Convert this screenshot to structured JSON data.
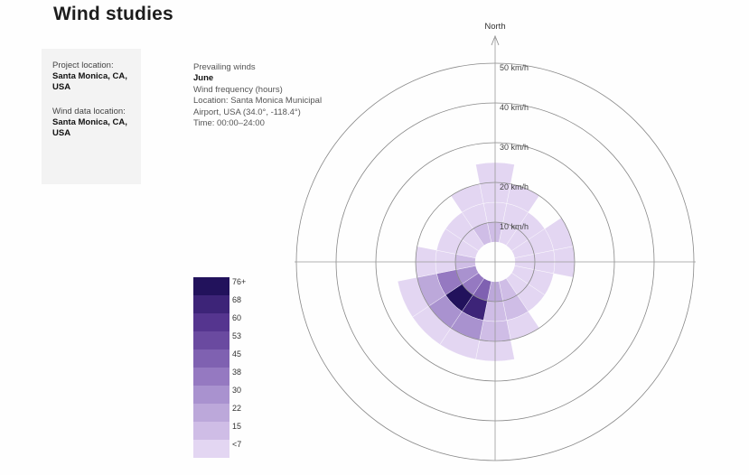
{
  "page": {
    "title": "Wind studies",
    "project_location_label": "Project location:",
    "project_location_value": "Santa Monica, CA, USA",
    "wind_data_location_label": "Wind data location:",
    "wind_data_location_value": "Santa Monica, CA, USA"
  },
  "info": {
    "line1": "Prevailing winds",
    "line2": "June",
    "line3": "Wind frequency (hours)",
    "line4": "Location: Santa Monica Municipal",
    "line5": "Airport, USA (34.0°, -118.4°)",
    "line6": "Time: 00:00–24:00"
  },
  "chart_data": {
    "type": "wind_rose",
    "direction_label": "North",
    "rings_kmh": [
      10,
      20,
      30,
      40,
      50
    ],
    "ring_labels": [
      "10 km/h",
      "20 km/h",
      "30 km/h",
      "40 km/h",
      "50 km/h"
    ],
    "speed_bins_kmh": [
      [
        5,
        10
      ],
      [
        10,
        15
      ],
      [
        15,
        20
      ],
      [
        20,
        25
      ]
    ],
    "sectors_deg": [
      0,
      22.5,
      45,
      67.5,
      90,
      112.5,
      135,
      157.5,
      180,
      202.5,
      225,
      247.5,
      270,
      292.5,
      315,
      337.5
    ],
    "frequency_hours": [
      [
        15,
        12,
        8,
        4
      ],
      [
        12,
        10,
        6,
        0
      ],
      [
        8,
        6,
        0,
        0
      ],
      [
        10,
        8,
        4,
        0
      ],
      [
        8,
        8,
        8,
        0
      ],
      [
        6,
        4,
        0,
        0
      ],
      [
        12,
        8,
        0,
        0
      ],
      [
        20,
        15,
        10,
        0
      ],
      [
        25,
        20,
        15,
        8
      ],
      [
        50,
        70,
        30,
        10
      ],
      [
        40,
        78,
        35,
        10
      ],
      [
        30,
        40,
        25,
        10
      ],
      [
        15,
        12,
        10,
        0
      ],
      [
        12,
        10,
        0,
        0
      ],
      [
        12,
        8,
        0,
        0
      ],
      [
        15,
        10,
        4,
        0
      ]
    ],
    "legend": {
      "labels": [
        "76+",
        "68",
        "60",
        "53",
        "45",
        "38",
        "30",
        "22",
        "15",
        "<7"
      ],
      "colors": [
        "#22125c",
        "#3d2478",
        "#55358f",
        "#6a4aa0",
        "#7f61b1",
        "#9579c1",
        "#a992cf",
        "#bca8da",
        "#cfbde6",
        "#e3d6f2"
      ]
    }
  }
}
